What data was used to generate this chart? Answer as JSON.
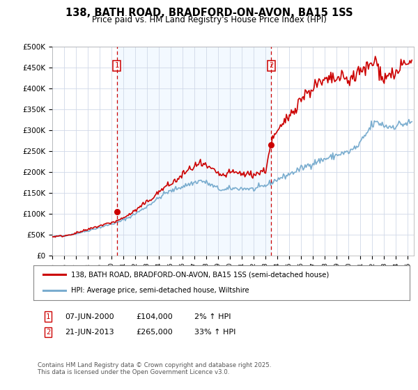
{
  "title": "138, BATH ROAD, BRADFORD-ON-AVON, BA15 1SS",
  "subtitle": "Price paid vs. HM Land Registry's House Price Index (HPI)",
  "ylim": [
    0,
    500000
  ],
  "xlim_start": 1995.0,
  "xlim_end": 2025.5,
  "yticks": [
    0,
    50000,
    100000,
    150000,
    200000,
    250000,
    300000,
    350000,
    400000,
    450000,
    500000
  ],
  "ytick_labels": [
    "£0",
    "£50K",
    "£100K",
    "£150K",
    "£200K",
    "£250K",
    "£300K",
    "£350K",
    "£400K",
    "£450K",
    "£500K"
  ],
  "transaction1_date": 2000.44,
  "transaction1_price": 104000,
  "transaction2_date": 2013.47,
  "transaction2_price": 265000,
  "red_line_color": "#cc0000",
  "blue_line_color": "#7aadcf",
  "shade_color": "#ddeeff",
  "vline_color": "#cc0000",
  "legend_line1": "138, BATH ROAD, BRADFORD-ON-AVON, BA15 1SS (semi-detached house)",
  "legend_line2": "HPI: Average price, semi-detached house, Wiltshire",
  "annotation1_label": "1",
  "annotation2_label": "2",
  "annotation1_date": "07-JUN-2000",
  "annotation1_price": "£104,000",
  "annotation1_hpi": "2% ↑ HPI",
  "annotation2_date": "21-JUN-2013",
  "annotation2_price": "£265,000",
  "annotation2_hpi": "33% ↑ HPI",
  "footer": "Contains HM Land Registry data © Crown copyright and database right 2025.\nThis data is licensed under the Open Government Licence v3.0.",
  "background_color": "#ffffff",
  "grid_color": "#d0d8e8",
  "shade_alpha": 0.35
}
